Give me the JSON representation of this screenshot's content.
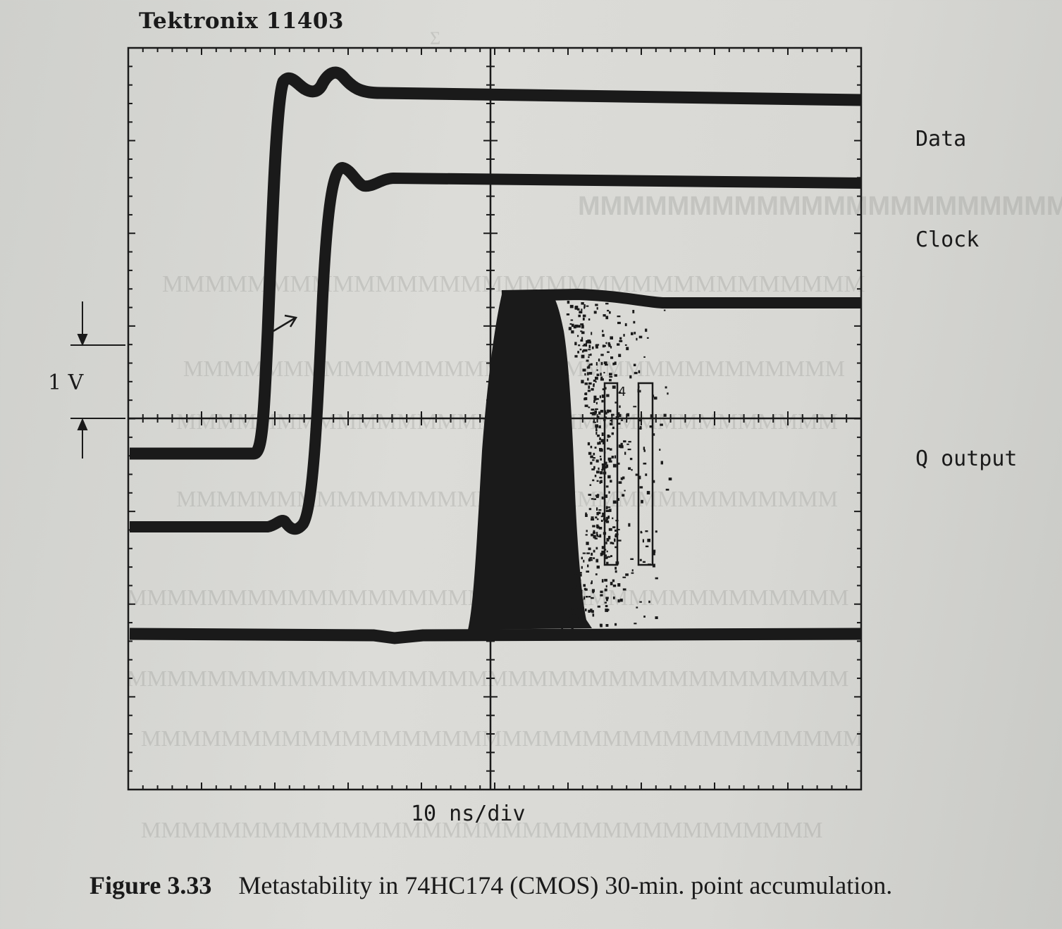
{
  "header": {
    "instrument": "Tektronix 11403"
  },
  "trace_labels": {
    "data": "Data",
    "clock": "Clock",
    "q_output": "Q output"
  },
  "scale": {
    "vertical": "1 V",
    "horizontal": "10 ns/div"
  },
  "caption": {
    "figure_number": "Figure 3.33",
    "text": "Metastability in 74HC174 (CMOS) 30-min. point accumulation."
  },
  "markers": {
    "window_label": "4"
  },
  "colors": {
    "ink": "#1a1a1a",
    "paper": "#d6d6d2",
    "bleed_through": "#8f908c"
  }
}
